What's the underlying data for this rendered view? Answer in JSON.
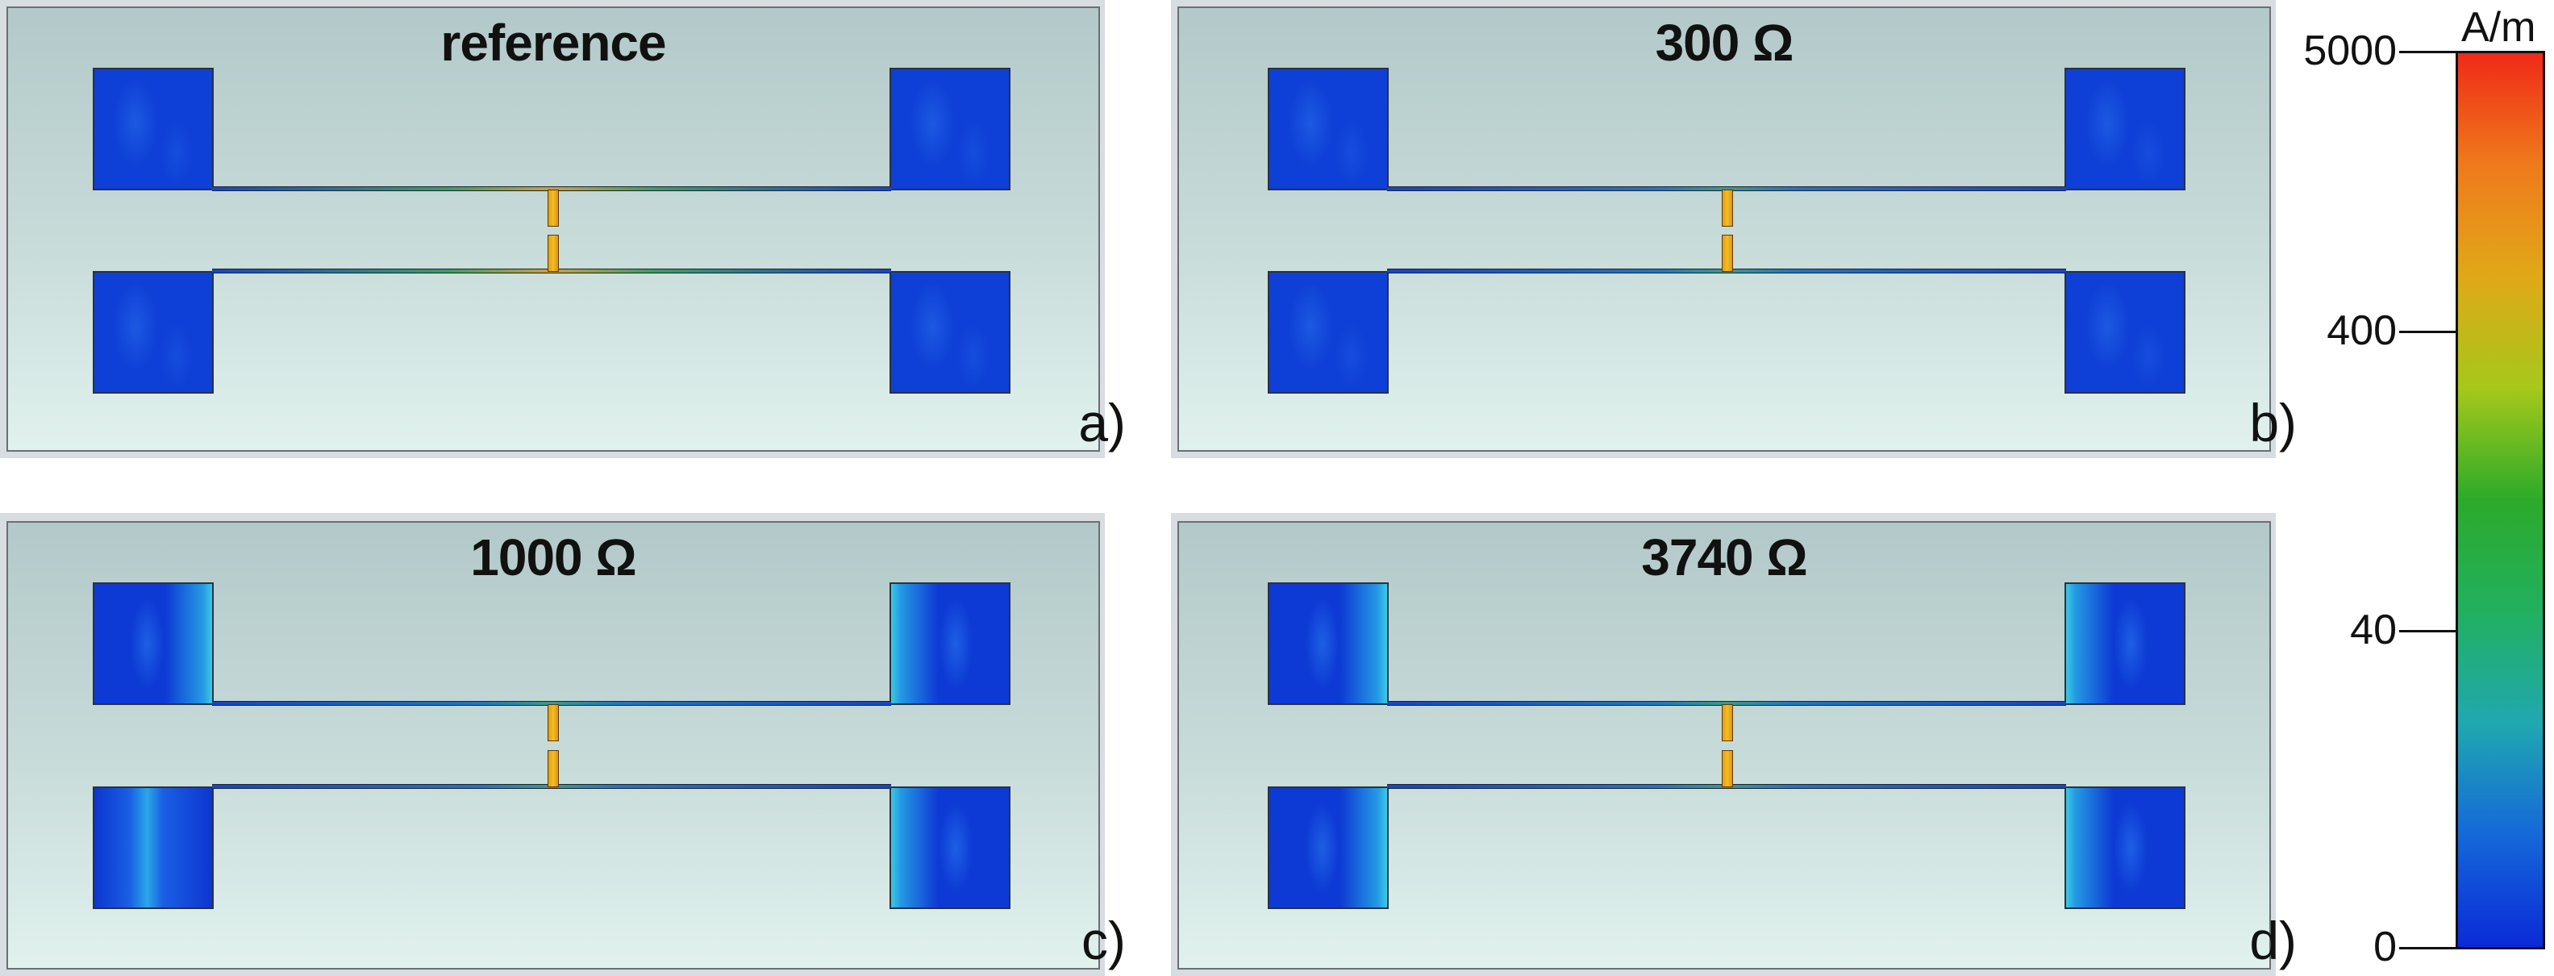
{
  "panels": [
    {
      "title": "reference",
      "letter": "a)"
    },
    {
      "title": "300 Ω",
      "letter": "b)"
    },
    {
      "title": "1000 Ω",
      "letter": "c)"
    },
    {
      "title": "3740 Ω",
      "letter": "d)"
    }
  ],
  "colorbar": {
    "unit": "A/m",
    "ticks": [
      "5000",
      "400",
      "40",
      "0"
    ],
    "colors": [
      "#0a2ad8",
      "#1568d8",
      "#20a8b0",
      "#22b060",
      "#2caa2a",
      "#a6c81a",
      "#e0a818",
      "#ef7a1c",
      "#f02a18"
    ]
  }
}
